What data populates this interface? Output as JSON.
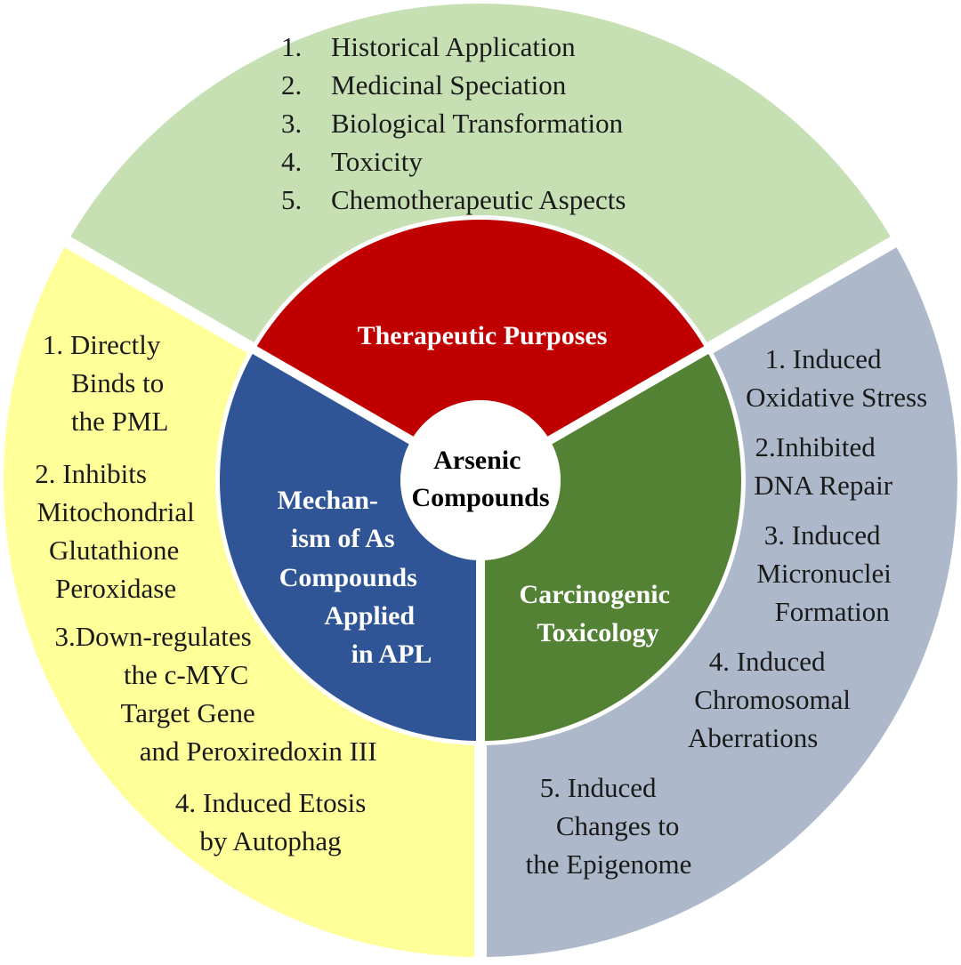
{
  "colors": {
    "outer_top": "#c6e0b4",
    "outer_left": "#ffff99",
    "outer_right": "#adb9ca",
    "inner_top": "#c00000",
    "inner_left": "#2f5597",
    "inner_right": "#548235",
    "center": "#ffffff"
  },
  "center": {
    "lines": [
      "Arsenic",
      "Compounds"
    ]
  },
  "inner": {
    "top": {
      "lines": [
        "Therapeutic Purposes"
      ]
    },
    "left": {
      "lines": [
        "Mechan-",
        "ism  of  As",
        "Compounds",
        "Applied",
        "in APL"
      ]
    },
    "right": {
      "lines": [
        "Carcinogenic",
        "Toxicology"
      ]
    }
  },
  "outer": {
    "top": {
      "items": [
        {
          "num": "1.",
          "text": "Historical Application"
        },
        {
          "num": "2.",
          "text": "Medicinal Speciation"
        },
        {
          "num": "3.",
          "text": "Biological Transformation"
        },
        {
          "num": "4.",
          "text": "Toxicity"
        },
        {
          "num": "5.",
          "text": "Chemotherapeutic Aspects"
        }
      ]
    },
    "left": {
      "lines": [
        "1. Directly",
        "Binds to",
        "the PML",
        "2.  Inhibits",
        "Mitochondrial",
        "Glutathione",
        "Peroxidase",
        "3.Down-regulates",
        "the c-MYC",
        "Target Gene",
        "and Peroxiredoxin III",
        "4.   Induced Etosis",
        "by Autophag"
      ]
    },
    "right": {
      "lines": [
        "1.   Induced",
        "Oxidative Stress",
        "2.Inhibited",
        "DNA Repair",
        "3.  Induced",
        "Micronuclei",
        "Formation",
        "4.   Induced",
        "Chromosomal",
        "Aberrations",
        "5.   Induced",
        "Changes to",
        "the Epigenome"
      ]
    }
  }
}
